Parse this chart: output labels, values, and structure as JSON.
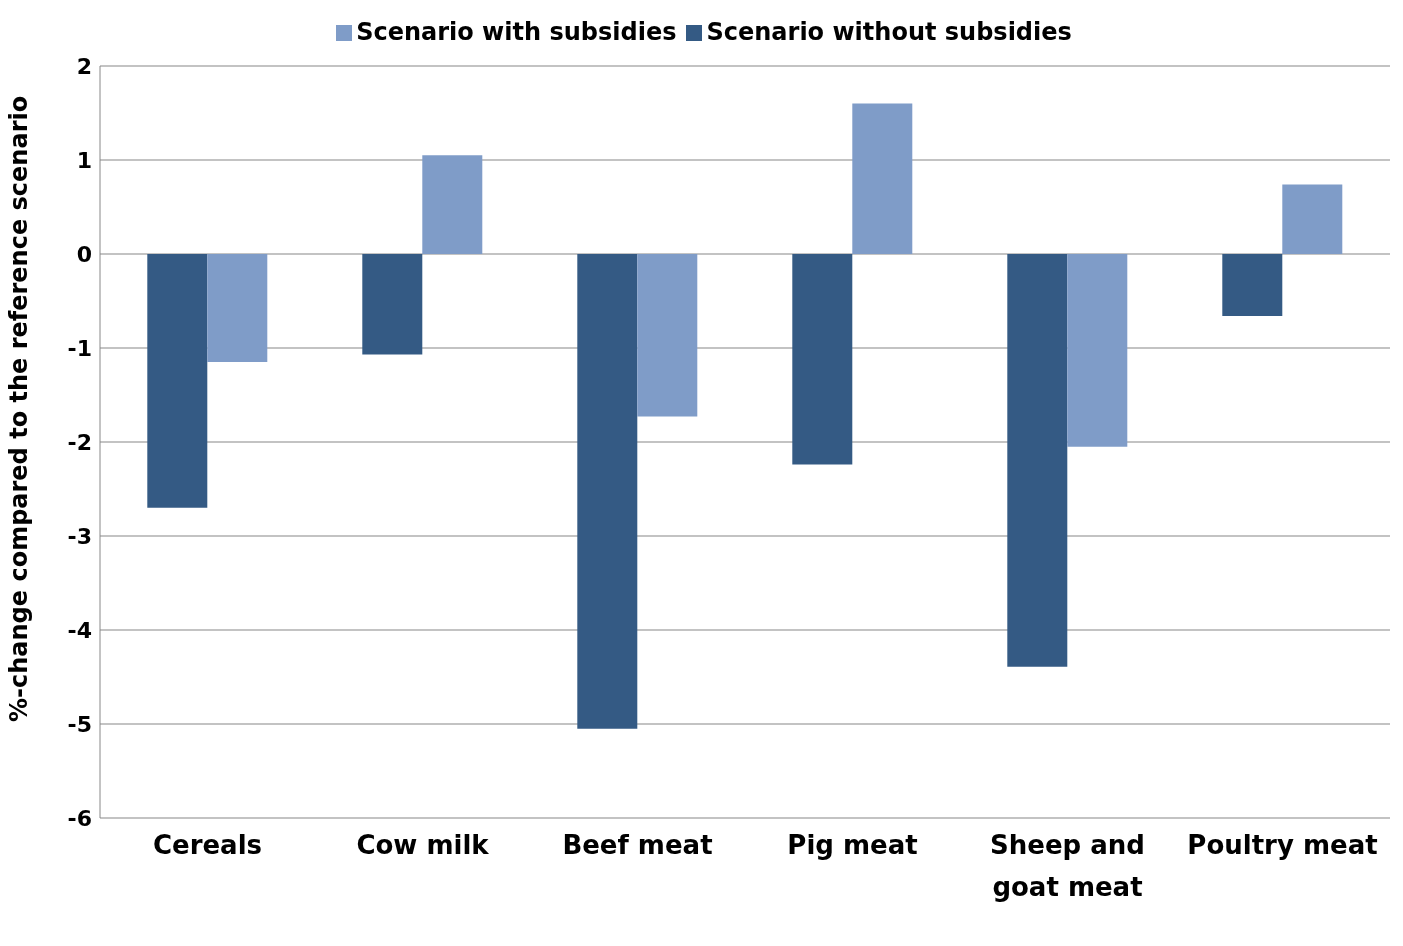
{
  "chart_data": {
    "type": "bar",
    "ylabel": "%-change compared to the reference scenario",
    "categories": [
      "Cereals",
      "Cow milk",
      "Beef meat",
      "Pig meat",
      "Sheep and goat meat",
      "Poultry meat"
    ],
    "series": [
      {
        "name": "Scenario without subsidies",
        "color": "#345a84",
        "values": [
          -2.7,
          -1.07,
          -5.05,
          -2.24,
          -4.39,
          -0.66
        ]
      },
      {
        "name": "Scenario with subsidies",
        "color": "#7f9cc8",
        "values": [
          -1.15,
          1.05,
          -1.73,
          1.6,
          -2.05,
          0.74
        ]
      }
    ],
    "ylim": [
      -6,
      2
    ],
    "yticks": [
      -6,
      -5,
      -4,
      -3,
      -2,
      -1,
      0,
      1,
      2
    ],
    "grid": "y",
    "legend": "top"
  }
}
